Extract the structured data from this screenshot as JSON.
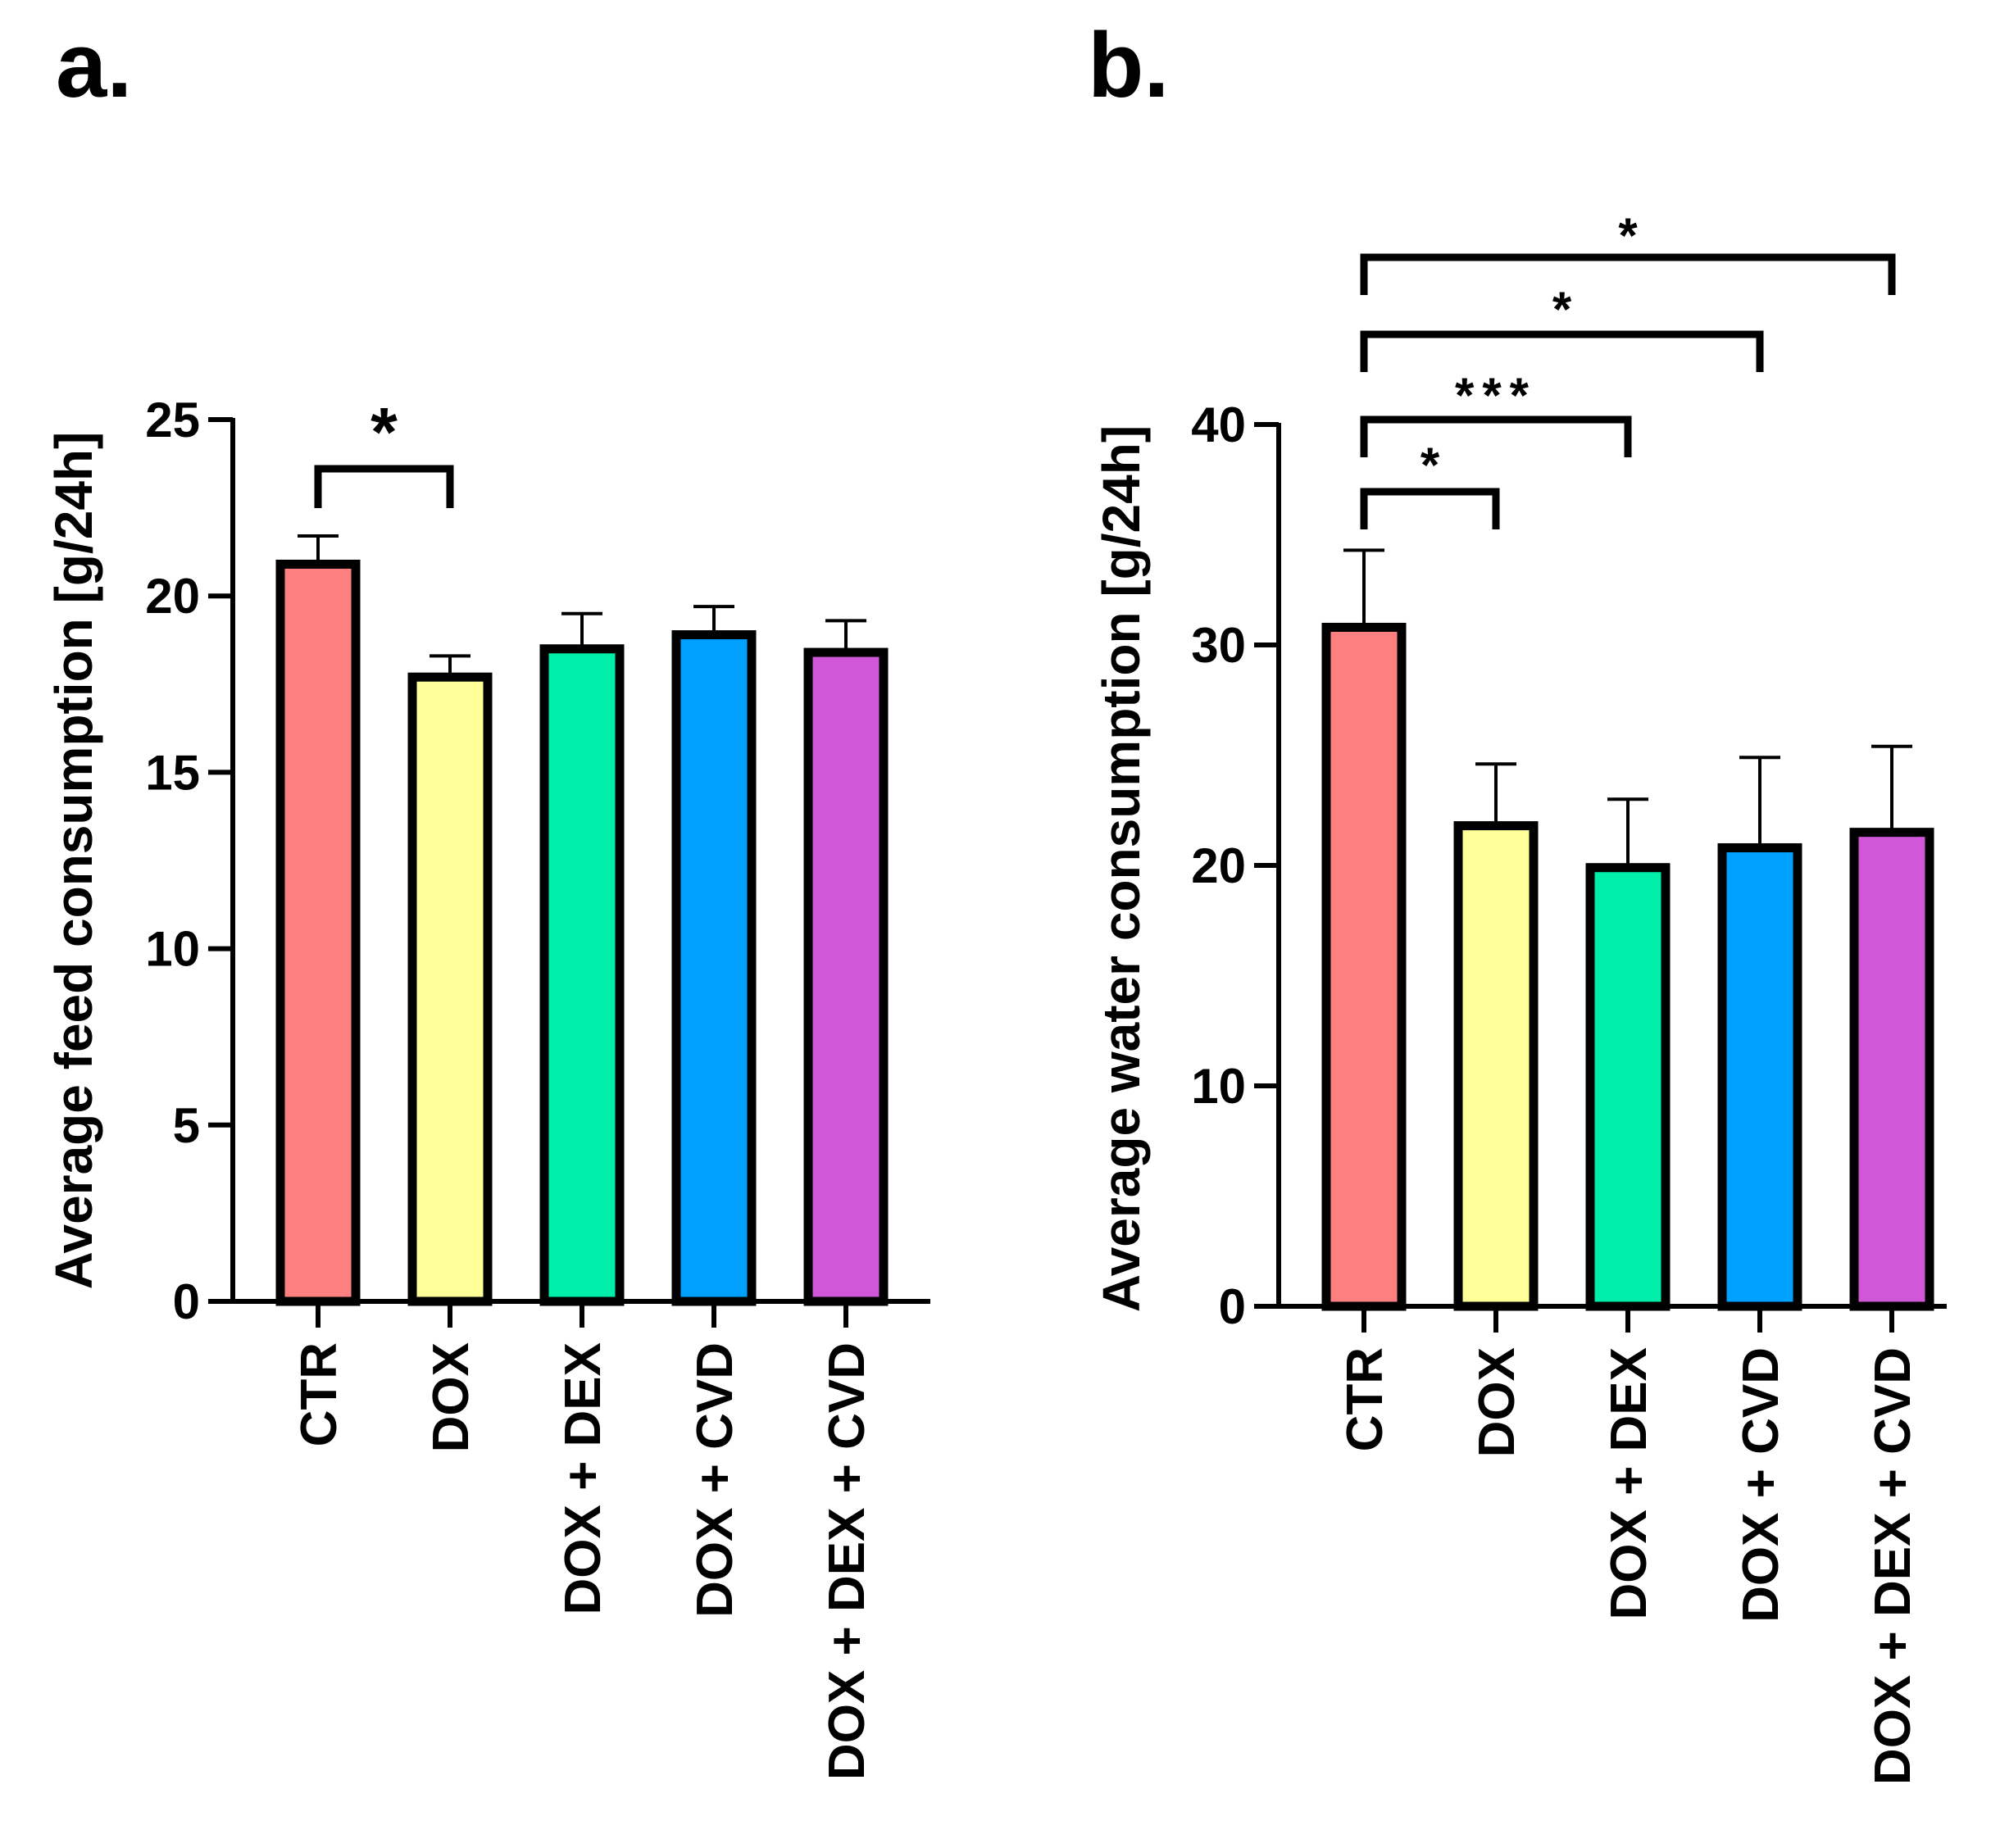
{
  "panels": [
    {
      "letter": "a.",
      "chart_data": {
        "type": "bar",
        "title": "",
        "xlabel": "",
        "ylabel": "Average feed consumption  [g/24h]",
        "ylim": [
          0,
          25
        ],
        "yticks": [
          0,
          5,
          10,
          15,
          20,
          25
        ],
        "categories": [
          "CTR",
          "DOX",
          "DOX + DEX",
          "DOX + CVD",
          "DOX + DEX + CVD"
        ],
        "series": [
          {
            "values": [
              20.9,
              17.7,
              18.5,
              18.9,
              18.4
            ],
            "errors": [
              0.8,
              0.6,
              1.0,
              0.8,
              0.9
            ]
          }
        ],
        "bar_colors": [
          "#FF8080",
          "#FFFF99",
          "#00EEAA",
          "#00A0FF",
          "#D058D8"
        ],
        "significance": [
          {
            "from": "CTR",
            "to": "DOX",
            "label": "*"
          }
        ],
        "grid": false,
        "legend": "none"
      }
    },
    {
      "letter": "b.",
      "chart_data": {
        "type": "bar",
        "title": "",
        "xlabel": "",
        "ylabel": "Average water consumption  [g/24h]",
        "ylim": [
          0,
          40
        ],
        "yticks": [
          0,
          10,
          20,
          30,
          40
        ],
        "categories": [
          "CTR",
          "DOX",
          "DOX + DEX",
          "DOX + CVD",
          "DOX + DEX + CVD"
        ],
        "series": [
          {
            "values": [
              30.8,
              21.8,
              19.9,
              20.8,
              21.5
            ],
            "errors": [
              3.5,
              2.8,
              3.1,
              4.1,
              3.9
            ]
          }
        ],
        "bar_colors": [
          "#FF8080",
          "#FFFF99",
          "#00EEAA",
          "#00A0FF",
          "#D058D8"
        ],
        "significance": [
          {
            "from": "CTR",
            "to": "DOX",
            "label": "*"
          },
          {
            "from": "CTR",
            "to": "DOX + DEX",
            "label": "***"
          },
          {
            "from": "CTR",
            "to": "DOX + CVD",
            "label": "*"
          },
          {
            "from": "CTR",
            "to": "DOX + DEX + CVD",
            "label": "*"
          }
        ],
        "grid": false,
        "legend": "none"
      }
    }
  ]
}
